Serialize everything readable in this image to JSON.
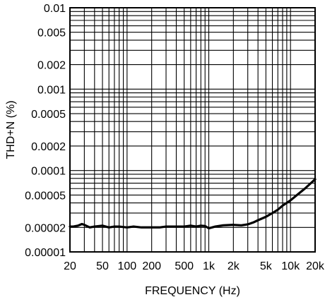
{
  "chart_data": {
    "type": "line",
    "title": "",
    "xlabel": "FREQUENCY (Hz)",
    "ylabel": "THD+N (%)",
    "xscale": "log",
    "yscale": "log",
    "xlim": [
      20,
      20000
    ],
    "ylim": [
      1e-05,
      0.01
    ],
    "grid": true,
    "legend": "none",
    "x_tick_values": [
      20,
      50,
      100,
      200,
      500,
      1000,
      2000,
      5000,
      10000,
      20000
    ],
    "x_tick_labels": [
      "20",
      "50",
      "100",
      "200",
      "500",
      "1k",
      "2k",
      "5k",
      "10k",
      "20k"
    ],
    "y_tick_values": [
      0.01,
      0.005,
      0.002,
      0.001,
      0.0005,
      0.0002,
      0.0001,
      5e-05,
      2e-05,
      1e-05
    ],
    "y_tick_labels": [
      "0.01",
      "0.005",
      "0.002",
      "0.001",
      "0.0005",
      "0.0002",
      "0.0001",
      "0.00005",
      "0.00002",
      "0.00001"
    ],
    "series": [
      {
        "x": [
          20,
          22,
          25,
          28,
          30,
          35,
          40,
          50,
          60,
          70,
          80,
          100,
          120,
          150,
          200,
          250,
          300,
          400,
          500,
          600,
          700,
          800,
          900,
          1000,
          1200,
          1500,
          2000,
          2500,
          3000,
          3500,
          4000,
          5000,
          6000,
          7000,
          8000,
          10000,
          12000,
          15000,
          20000
        ],
        "y": [
          2.05e-05,
          2.05e-05,
          2.1e-05,
          2.2e-05,
          2.15e-05,
          2e-05,
          2.05e-05,
          2.1e-05,
          2e-05,
          2.05e-05,
          2.05e-05,
          2e-05,
          2.05e-05,
          2e-05,
          2e-05,
          2e-05,
          2.05e-05,
          2.05e-05,
          2.05e-05,
          2.1e-05,
          2.05e-05,
          2.1e-05,
          2.08e-05,
          1.95e-05,
          2.05e-05,
          2.12e-05,
          2.15e-05,
          2.12e-05,
          2.18e-05,
          2.3e-05,
          2.45e-05,
          2.7e-05,
          3e-05,
          3.3e-05,
          3.7e-05,
          4.3e-05,
          5e-05,
          6e-05,
          7.8e-05
        ]
      }
    ],
    "colors": {
      "line": "#000000",
      "grid": "#000000",
      "background": "#ffffff"
    }
  }
}
